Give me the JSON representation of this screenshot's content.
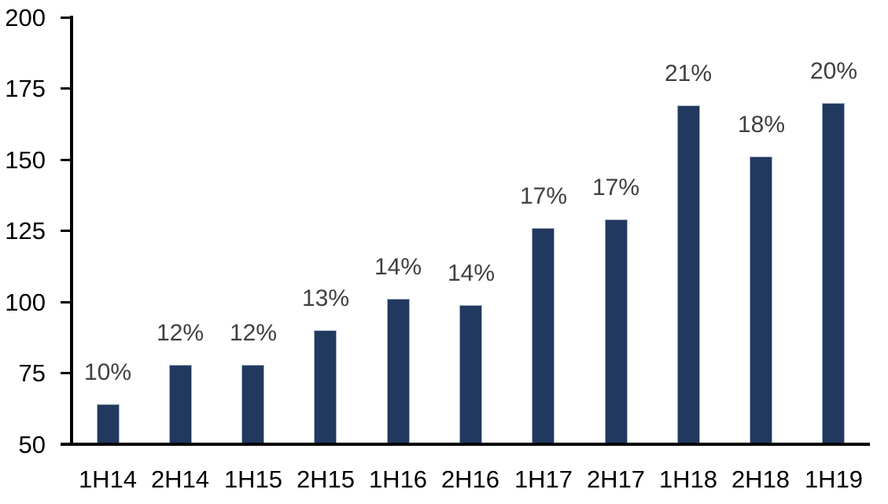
{
  "chart_data": {
    "type": "bar",
    "title": "",
    "xlabel": "",
    "ylabel": "",
    "categories": [
      "1H14",
      "2H14",
      "1H15",
      "2H15",
      "1H16",
      "2H16",
      "1H17",
      "2H17",
      "1H18",
      "2H18",
      "1H19"
    ],
    "values": [
      64,
      78,
      78,
      90,
      101,
      99,
      126,
      129,
      169,
      151,
      170
    ],
    "bar_labels": [
      "10%",
      "12%",
      "12%",
      "13%",
      "14%",
      "14%",
      "17%",
      "17%",
      "21%",
      "18%",
      "20%"
    ],
    "ylim": [
      50,
      200
    ],
    "yticks": [
      50,
      75,
      100,
      125,
      150,
      175,
      200
    ],
    "grid": false,
    "legend_position": "none",
    "colors": {
      "bar_fill": "#21395E",
      "bar_border": "#a3b1c6",
      "bar_value_label": "#404040",
      "axis_text": "#000000",
      "axis_line": "#000000",
      "background": "#ffffff"
    }
  }
}
